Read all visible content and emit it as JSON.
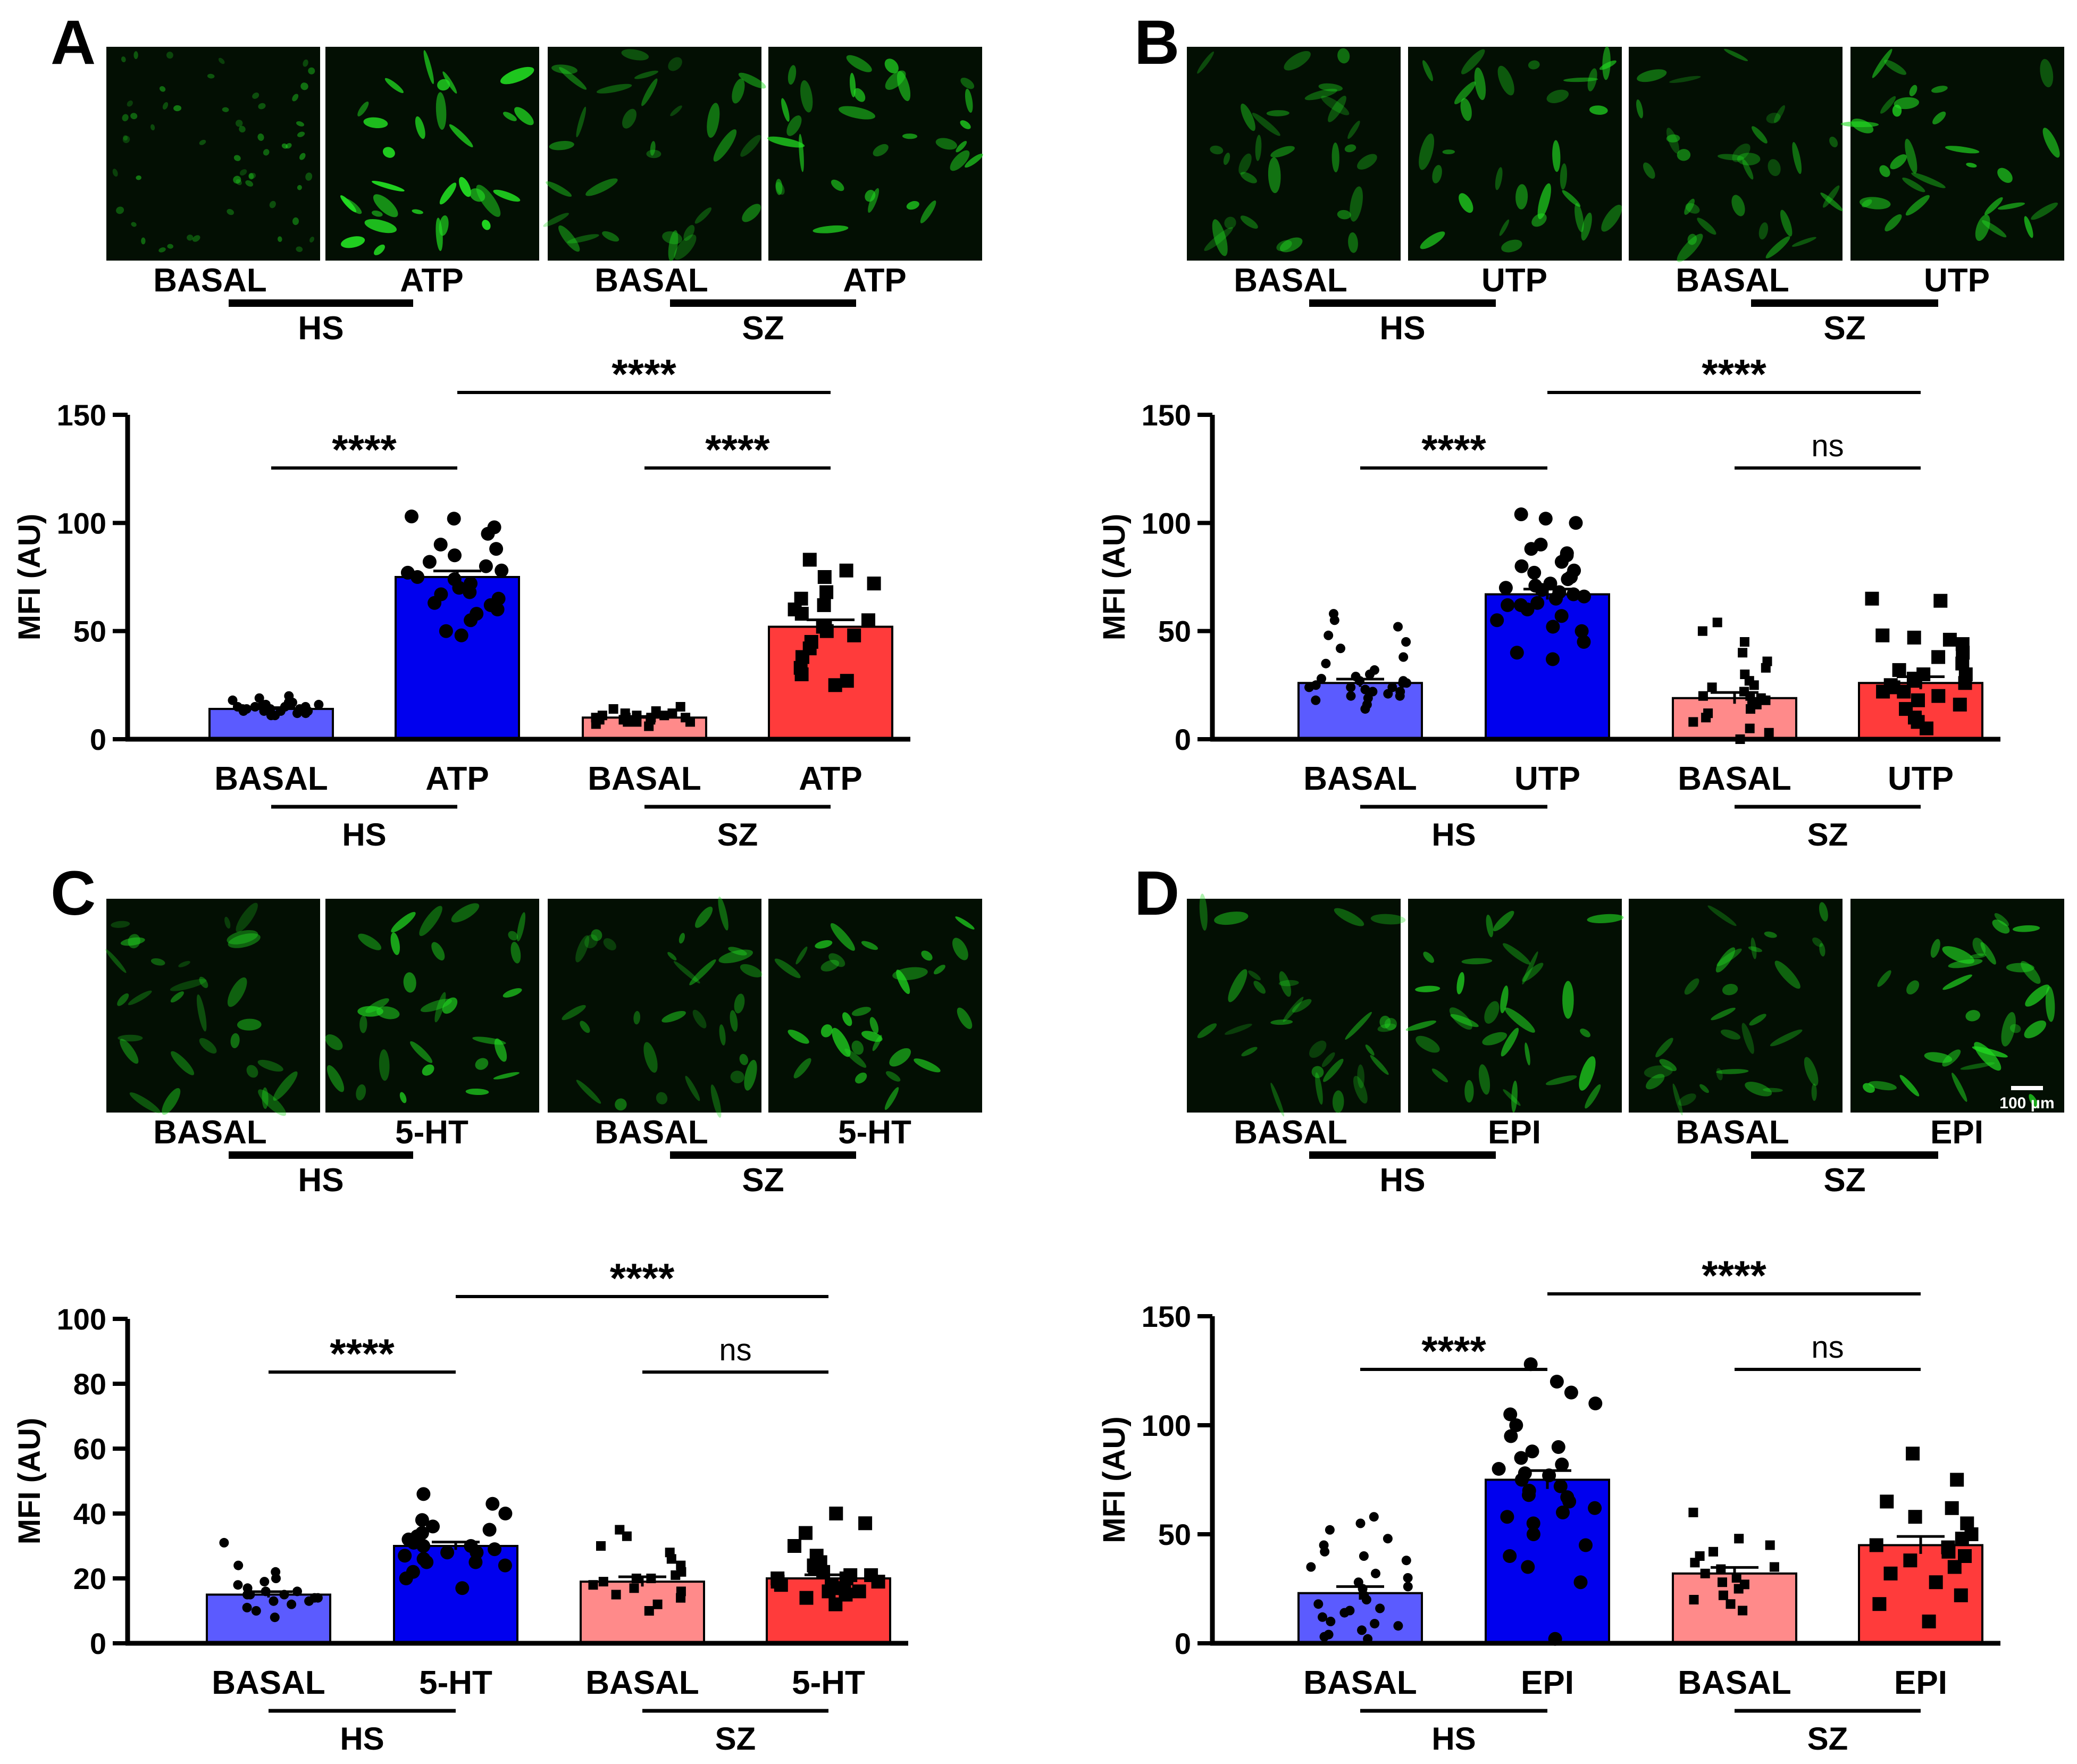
{
  "figure": {
    "scale_bar_label": "100 μm",
    "colors": {
      "hs_basal": "#5b5bff",
      "hs_treated": "#0000ee",
      "sz_basal": "#ff8a8a",
      "sz_treated": "#ff3b3b",
      "micrograph_bg": "#000000",
      "cell_green": "#22dd22"
    }
  },
  "chart_data": [
    {
      "panel": "A",
      "type": "bar",
      "image_labels": [
        "BASAL",
        "ATP",
        "BASAL",
        "ATP"
      ],
      "image_groups": [
        "HS",
        "SZ"
      ],
      "categories": [
        "BASAL",
        "ATP",
        "BASAL",
        "ATP"
      ],
      "groups": [
        "HS",
        "SZ"
      ],
      "ylabel": "MFI (AU)",
      "ylim": [
        0,
        150
      ],
      "yticks": [
        "0",
        "50",
        "100",
        "150"
      ],
      "values": [
        14,
        75,
        10,
        52
      ],
      "sem": [
        0.6,
        2.8,
        0.5,
        3.2
      ],
      "points": [
        [
          11,
          12,
          12,
          13,
          13,
          13,
          14,
          14,
          14,
          14,
          15,
          15,
          15,
          16,
          16,
          17,
          17,
          18,
          19,
          20,
          11,
          13,
          15,
          16
        ],
        [
          48,
          50,
          55,
          58,
          60,
          62,
          63,
          65,
          67,
          68,
          70,
          72,
          74,
          75,
          77,
          78,
          80,
          82,
          85,
          88,
          90,
          95,
          98,
          102,
          103
        ],
        [
          6,
          7,
          8,
          8,
          9,
          9,
          9,
          10,
          10,
          10,
          11,
          11,
          12,
          12,
          13,
          14,
          15,
          8,
          10,
          11
        ],
        [
          25,
          27,
          30,
          33,
          38,
          42,
          45,
          48,
          50,
          52,
          55,
          58,
          60,
          62,
          65,
          68,
          72,
          75,
          78,
          83
        ]
      ],
      "markers": [
        "circle",
        "circle",
        "square",
        "square"
      ],
      "comparisons": [
        {
          "from": 0,
          "to": 1,
          "label": "****"
        },
        {
          "from": 2,
          "to": 3,
          "label": "****"
        },
        {
          "from": 1,
          "to": 3,
          "label": "****"
        }
      ]
    },
    {
      "panel": "B",
      "type": "bar",
      "image_labels": [
        "BASAL",
        "UTP",
        "BASAL",
        "UTP"
      ],
      "image_groups": [
        "HS",
        "SZ"
      ],
      "categories": [
        "BASAL",
        "UTP",
        "BASAL",
        "UTP"
      ],
      "groups": [
        "HS",
        "SZ"
      ],
      "ylabel": "MFI (AU)",
      "ylim": [
        0,
        150
      ],
      "yticks": [
        "0",
        "50",
        "100",
        "150"
      ],
      "values": [
        26,
        67,
        19,
        26
      ],
      "sem": [
        1.8,
        2.4,
        2.6,
        2.9
      ],
      "points": [
        [
          14,
          16,
          18,
          19,
          20,
          21,
          22,
          22,
          23,
          24,
          24,
          25,
          26,
          26,
          27,
          28,
          29,
          30,
          32,
          35,
          38,
          42,
          45,
          48,
          52,
          55,
          58,
          20,
          24,
          27
        ],
        [
          37,
          40,
          45,
          50,
          52,
          55,
          57,
          60,
          62,
          63,
          65,
          66,
          67,
          68,
          70,
          71,
          72,
          74,
          75,
          77,
          78,
          80,
          82,
          85,
          86,
          88,
          90,
          100,
          102,
          104,
          62,
          69
        ],
        [
          0,
          3,
          5,
          8,
          10,
          12,
          14,
          16,
          17,
          18,
          19,
          20,
          22,
          24,
          25,
          27,
          30,
          33,
          36,
          40,
          45,
          50,
          54,
          20
        ],
        [
          5,
          8,
          10,
          14,
          16,
          18,
          20,
          22,
          24,
          25,
          26,
          27,
          28,
          30,
          32,
          35,
          38,
          40,
          44,
          46,
          47,
          48,
          65,
          64,
          22,
          30
        ]
      ],
      "markers": [
        "circle",
        "circle",
        "square",
        "square"
      ],
      "comparisons": [
        {
          "from": 0,
          "to": 1,
          "label": "****"
        },
        {
          "from": 2,
          "to": 3,
          "label": "ns"
        },
        {
          "from": 1,
          "to": 3,
          "label": "****"
        }
      ]
    },
    {
      "panel": "C",
      "type": "bar",
      "image_labels": [
        "BASAL",
        "5-HT",
        "BASAL",
        "5-HT"
      ],
      "image_groups": [
        "HS",
        "SZ"
      ],
      "categories": [
        "BASAL",
        "5-HT",
        "BASAL",
        "5-HT"
      ],
      "groups": [
        "HS",
        "SZ"
      ],
      "ylabel": "MFI (AU)",
      "ylim": [
        0,
        100
      ],
      "yticks": [
        "0",
        "20",
        "40",
        "60",
        "80",
        "100"
      ],
      "values": [
        15,
        30,
        19,
        20
      ],
      "sem": [
        0.9,
        1.2,
        1.5,
        1.1
      ],
      "points": [
        [
          8,
          10,
          11,
          12,
          13,
          14,
          14,
          15,
          15,
          16,
          16,
          17,
          18,
          19,
          20,
          22,
          24,
          31,
          13,
          15
        ],
        [
          17,
          20,
          22,
          24,
          25,
          26,
          27,
          28,
          29,
          30,
          30,
          31,
          32,
          33,
          34,
          35,
          36,
          38,
          40,
          43,
          46,
          25,
          28
        ],
        [
          10,
          12,
          14,
          15,
          16,
          17,
          18,
          19,
          20,
          20,
          21,
          22,
          24,
          26,
          28,
          30,
          33,
          35
        ],
        [
          12,
          14,
          15,
          16,
          17,
          17,
          18,
          18,
          19,
          19,
          20,
          20,
          21,
          22,
          23,
          24,
          25,
          27,
          30,
          34,
          37,
          40,
          16,
          21
        ]
      ],
      "markers": [
        "circle",
        "circle",
        "square",
        "square"
      ],
      "comparisons": [
        {
          "from": 0,
          "to": 1,
          "label": "****"
        },
        {
          "from": 2,
          "to": 3,
          "label": "ns"
        },
        {
          "from": 1,
          "to": 3,
          "label": "****"
        }
      ]
    },
    {
      "panel": "D",
      "type": "bar",
      "image_labels": [
        "BASAL",
        "EPI",
        "BASAL",
        "EPI"
      ],
      "image_groups": [
        "HS",
        "SZ"
      ],
      "categories": [
        "BASAL",
        "EPI",
        "BASAL",
        "EPI"
      ],
      "groups": [
        "HS",
        "SZ"
      ],
      "ylabel": "MFI (AU)",
      "ylim": [
        0,
        150
      ],
      "yticks": [
        "0",
        "50",
        "100",
        "150"
      ],
      "values": [
        23,
        75,
        32,
        45
      ],
      "sem": [
        3.0,
        4.2,
        2.8,
        4.0
      ],
      "points": [
        [
          2,
          4,
          6,
          8,
          10,
          12,
          14,
          16,
          18,
          20,
          22,
          25,
          28,
          30,
          32,
          35,
          38,
          40,
          42,
          45,
          48,
          52,
          55,
          58,
          3,
          9,
          15,
          26
        ],
        [
          2,
          28,
          35,
          40,
          45,
          50,
          55,
          58,
          60,
          62,
          65,
          68,
          70,
          72,
          75,
          78,
          80,
          82,
          85,
          88,
          90,
          95,
          100,
          105,
          110,
          115,
          120,
          128,
          67,
          77
        ],
        [
          15,
          18,
          20,
          22,
          25,
          27,
          28,
          30,
          32,
          34,
          35,
          37,
          40,
          42,
          45,
          48,
          60
        ],
        [
          10,
          18,
          22,
          28,
          32,
          35,
          38,
          40,
          42,
          44,
          45,
          48,
          50,
          55,
          58,
          62,
          65,
          75,
          87
        ]
      ],
      "markers": [
        "circle",
        "circle",
        "square",
        "square"
      ],
      "comparisons": [
        {
          "from": 0,
          "to": 1,
          "label": "****"
        },
        {
          "from": 2,
          "to": 3,
          "label": "ns"
        },
        {
          "from": 1,
          "to": 3,
          "label": "****"
        }
      ]
    }
  ]
}
